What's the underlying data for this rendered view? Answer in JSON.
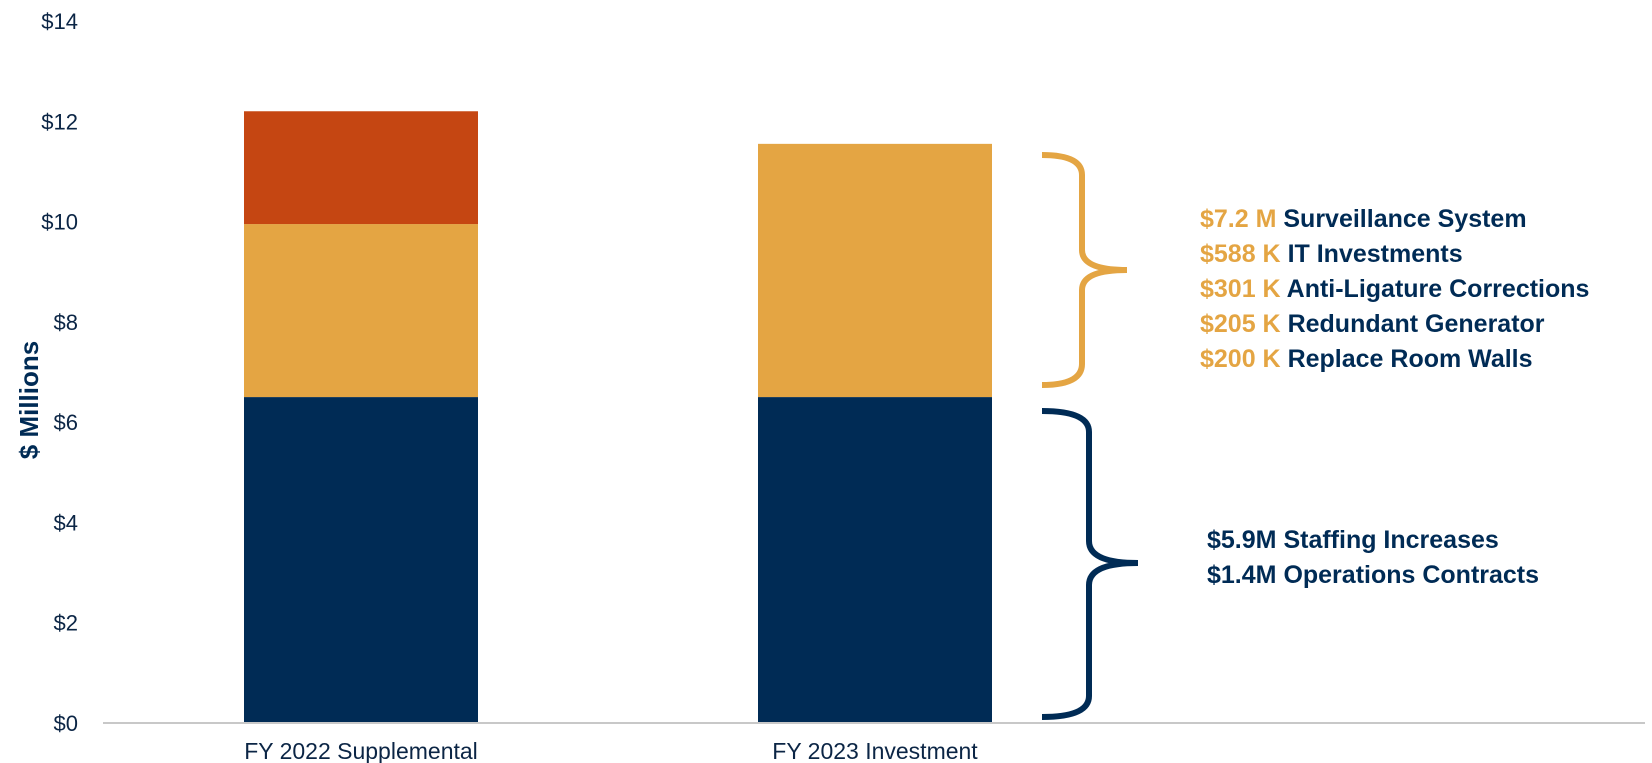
{
  "chart_data": {
    "type": "bar",
    "stacked": true,
    "categories": [
      "FY 2022 Supplemental",
      "FY 2023 Investment"
    ],
    "ylabel": "$ Millions",
    "ylim": [
      0,
      14
    ],
    "y_ticks": [
      "$0",
      "$2",
      "$4",
      "$6",
      "$8",
      "$10",
      "$12",
      "$14"
    ],
    "y_tick_values": [
      0,
      2,
      4,
      6,
      8,
      10,
      12,
      14
    ],
    "series": [
      {
        "values": [
          6.5,
          6.5
        ],
        "color": "#002b55"
      },
      {
        "values": [
          3.45,
          5.05
        ],
        "color": "#e4a543"
      },
      {
        "values": [
          2.25,
          0
        ],
        "color": "#c54612"
      }
    ],
    "gridlines": false,
    "annotations": {
      "upper_bracket_color": "#e4a543",
      "lower_bracket_color": "#002b55",
      "upper": [
        {
          "amount": "$7.2 M",
          "label": "Surveillance System"
        },
        {
          "amount": "$588 K",
          "label": "IT Investments"
        },
        {
          "amount": "$301 K",
          "label": "Anti-Ligature Corrections"
        },
        {
          "amount": "$205 K",
          "label": "Redundant Generator"
        },
        {
          "amount": "$200 K",
          "label": "Replace Room Walls"
        }
      ],
      "lower": [
        {
          "amount": "$5.9M",
          "label": "Staffing Increases"
        },
        {
          "amount": "$1.4M",
          "label": "Operations Contracts"
        }
      ]
    }
  }
}
